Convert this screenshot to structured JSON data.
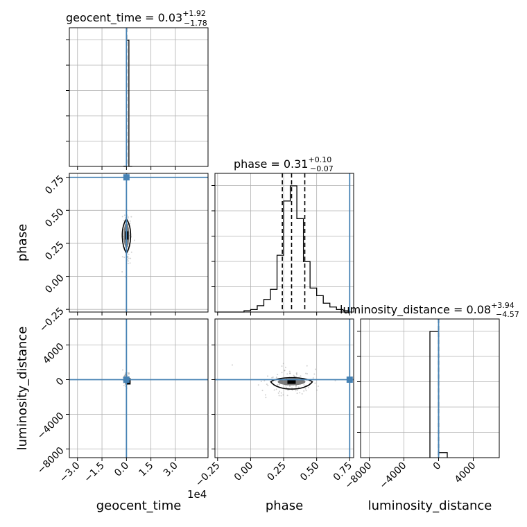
{
  "chart_data": {
    "type": "corner",
    "parameters": [
      "geocent_time",
      "phase",
      "luminosity_distance"
    ],
    "truths": {
      "geocent_time": 0.0,
      "phase": 0.75,
      "luminosity_distance": 0.0
    },
    "titles": {
      "geocent_time": {
        "label": "geocent_time = 0.03",
        "plus": "+1.92",
        "minus": "−1.78"
      },
      "phase": {
        "label": "phase = 0.31",
        "plus": "+0.10",
        "minus": "−0.07"
      },
      "luminosity_distance": {
        "label": "luminosity_distance = 0.08",
        "plus": "+3.94",
        "minus": "−4.57"
      }
    },
    "axes": {
      "geocent_time": {
        "range": [
          -35000,
          50000
        ],
        "ticks": [
          -30000,
          -15000,
          0,
          15000,
          30000
        ],
        "tick_labels": [
          "−3.0",
          "−1.5",
          "0.0",
          "1.5",
          "3.0"
        ],
        "offset_text": "1e4",
        "label": "geocent_time"
      },
      "phase": {
        "range": [
          -0.27,
          0.78
        ],
        "ticks": [
          -0.25,
          0.0,
          0.25,
          0.5,
          0.75
        ],
        "tick_labels": [
          "−0.25",
          "0.00",
          "0.25",
          "0.50",
          "0.75"
        ],
        "label": "phase"
      },
      "luminosity_distance": {
        "range": [
          -9000,
          7000
        ],
        "ticks": [
          -8000,
          -4000,
          0,
          4000
        ],
        "tick_labels": [
          "−8000",
          "−4000",
          "0",
          "4000"
        ],
        "label": "luminosity_distance"
      }
    },
    "histograms": {
      "geocent_time": {
        "bin_edges": [
          -1500,
          0,
          1500,
          3500
        ],
        "counts": [
          2,
          1000,
          0
        ],
        "quantiles": [
          -1.78,
          0.03,
          1.92
        ]
      },
      "phase": {
        "bin_edges": [
          -0.25,
          -0.2,
          -0.15,
          -0.1,
          -0.05,
          0.0,
          0.05,
          0.1,
          0.15,
          0.2,
          0.25,
          0.3,
          0.35,
          0.4,
          0.45,
          0.5,
          0.55,
          0.6,
          0.65,
          0.7,
          0.75
        ],
        "counts": [
          0,
          0,
          0,
          0,
          1,
          2,
          5,
          10,
          18,
          45,
          88,
          100,
          74,
          40,
          19,
          13,
          7,
          4,
          2,
          1
        ],
        "quantiles": [
          0.24,
          0.31,
          0.41
        ]
      },
      "luminosity_distance": {
        "bin_edges": [
          -1000,
          -200,
          0,
          1000
        ],
        "counts": [
          100,
          100,
          4
        ],
        "quantiles": [
          -4.49,
          0.08,
          4.02
        ]
      }
    },
    "scatter_2d": {
      "phase_vs_geocent_time": {
        "contour_center": [
          0,
          0.31
        ],
        "truth": [
          0,
          0.75
        ]
      },
      "luminosity_distance_vs_geocent_time": {
        "contour_center": [
          0,
          0
        ],
        "truth": [
          0,
          0
        ]
      },
      "luminosity_distance_vs_phase": {
        "contour_center": [
          0.31,
          -250
        ],
        "truth": [
          0.75,
          0
        ]
      }
    },
    "grid": true
  }
}
